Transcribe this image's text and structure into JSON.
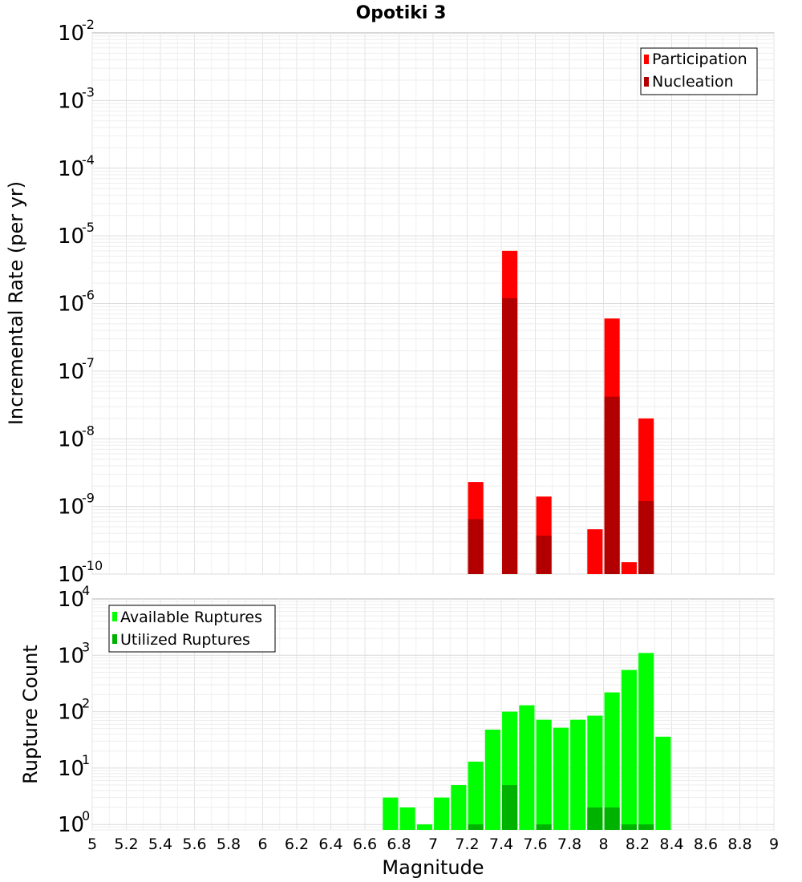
{
  "chart_data": [
    {
      "type": "bar",
      "title": "Opotiki 3",
      "xlabel": "",
      "ylabel": "Incremental Rate (per yr)",
      "yscale": "log",
      "ylim": [
        1e-10,
        0.01
      ],
      "xlim": [
        5,
        9
      ],
      "grid": true,
      "legend": "top-right",
      "ytick_labels": [
        {
          "base": "10",
          "exp": "-2"
        },
        {
          "base": "10",
          "exp": "-3"
        },
        {
          "base": "10",
          "exp": "-4"
        },
        {
          "base": "10",
          "exp": "-5"
        },
        {
          "base": "10",
          "exp": "-6"
        },
        {
          "base": "10",
          "exp": "-7"
        },
        {
          "base": "10",
          "exp": "-8"
        },
        {
          "base": "10",
          "exp": "-9"
        },
        {
          "base": "10",
          "exp": "-10"
        }
      ],
      "bar_width": 0.09,
      "series": [
        {
          "name": "Participation",
          "color": "#ff0000",
          "x": [
            7.25,
            7.45,
            7.65,
            7.95,
            8.05,
            8.15,
            8.25
          ],
          "values": [
            2.3e-09,
            6e-06,
            1.4e-09,
            4.6e-10,
            6e-07,
            1.5e-10,
            2e-08
          ]
        },
        {
          "name": "Nucleation",
          "color": "#b20000",
          "x": [
            7.25,
            7.45,
            7.65,
            8.05,
            8.25
          ],
          "values": [
            6.5e-10,
            1.2e-06,
            3.7e-10,
            4.2e-08,
            1.2e-09
          ]
        }
      ]
    },
    {
      "type": "bar",
      "title": "",
      "xlabel": "Magnitude",
      "ylabel": "Rupture Count",
      "yscale": "log",
      "ylim": [
        0.8,
        10000
      ],
      "xlim": [
        5,
        9
      ],
      "grid": true,
      "legend": "top-left",
      "ytick_labels": [
        {
          "value": 10000,
          "base": "10",
          "exp": "4"
        },
        {
          "value": 1000,
          "base": "10",
          "exp": "3"
        },
        {
          "value": 100,
          "base": "10",
          "exp": "2"
        },
        {
          "value": 10,
          "base": "10",
          "exp": "1"
        },
        {
          "value": 1,
          "base": "10",
          "exp": "0"
        }
      ],
      "x_ticks": [
        "5",
        "5.2",
        "5.4",
        "5.6",
        "5.8",
        "6",
        "6.2",
        "6.4",
        "6.6",
        "6.8",
        "7",
        "7.2",
        "7.4",
        "7.6",
        "7.8",
        "8",
        "8.2",
        "8.4",
        "8.6",
        "8.8",
        "9"
      ],
      "bar_width": 0.09,
      "series": [
        {
          "name": "Available Ruptures",
          "color": "#00ff00",
          "x": [
            6.75,
            6.85,
            6.95,
            7.05,
            7.15,
            7.25,
            7.35,
            7.45,
            7.55,
            7.65,
            7.75,
            7.85,
            7.95,
            8.05,
            8.15,
            8.25,
            8.35
          ],
          "values": [
            3,
            2,
            1,
            3,
            5,
            13,
            48,
            100,
            130,
            72,
            52,
            72,
            85,
            220,
            550,
            1100,
            36
          ]
        },
        {
          "name": "Utilized Ruptures",
          "color": "#00b200",
          "x": [
            7.25,
            7.45,
            7.65,
            7.95,
            8.05,
            8.15,
            8.25
          ],
          "values": [
            1,
            5,
            1,
            2,
            2,
            1,
            1
          ]
        }
      ]
    }
  ]
}
